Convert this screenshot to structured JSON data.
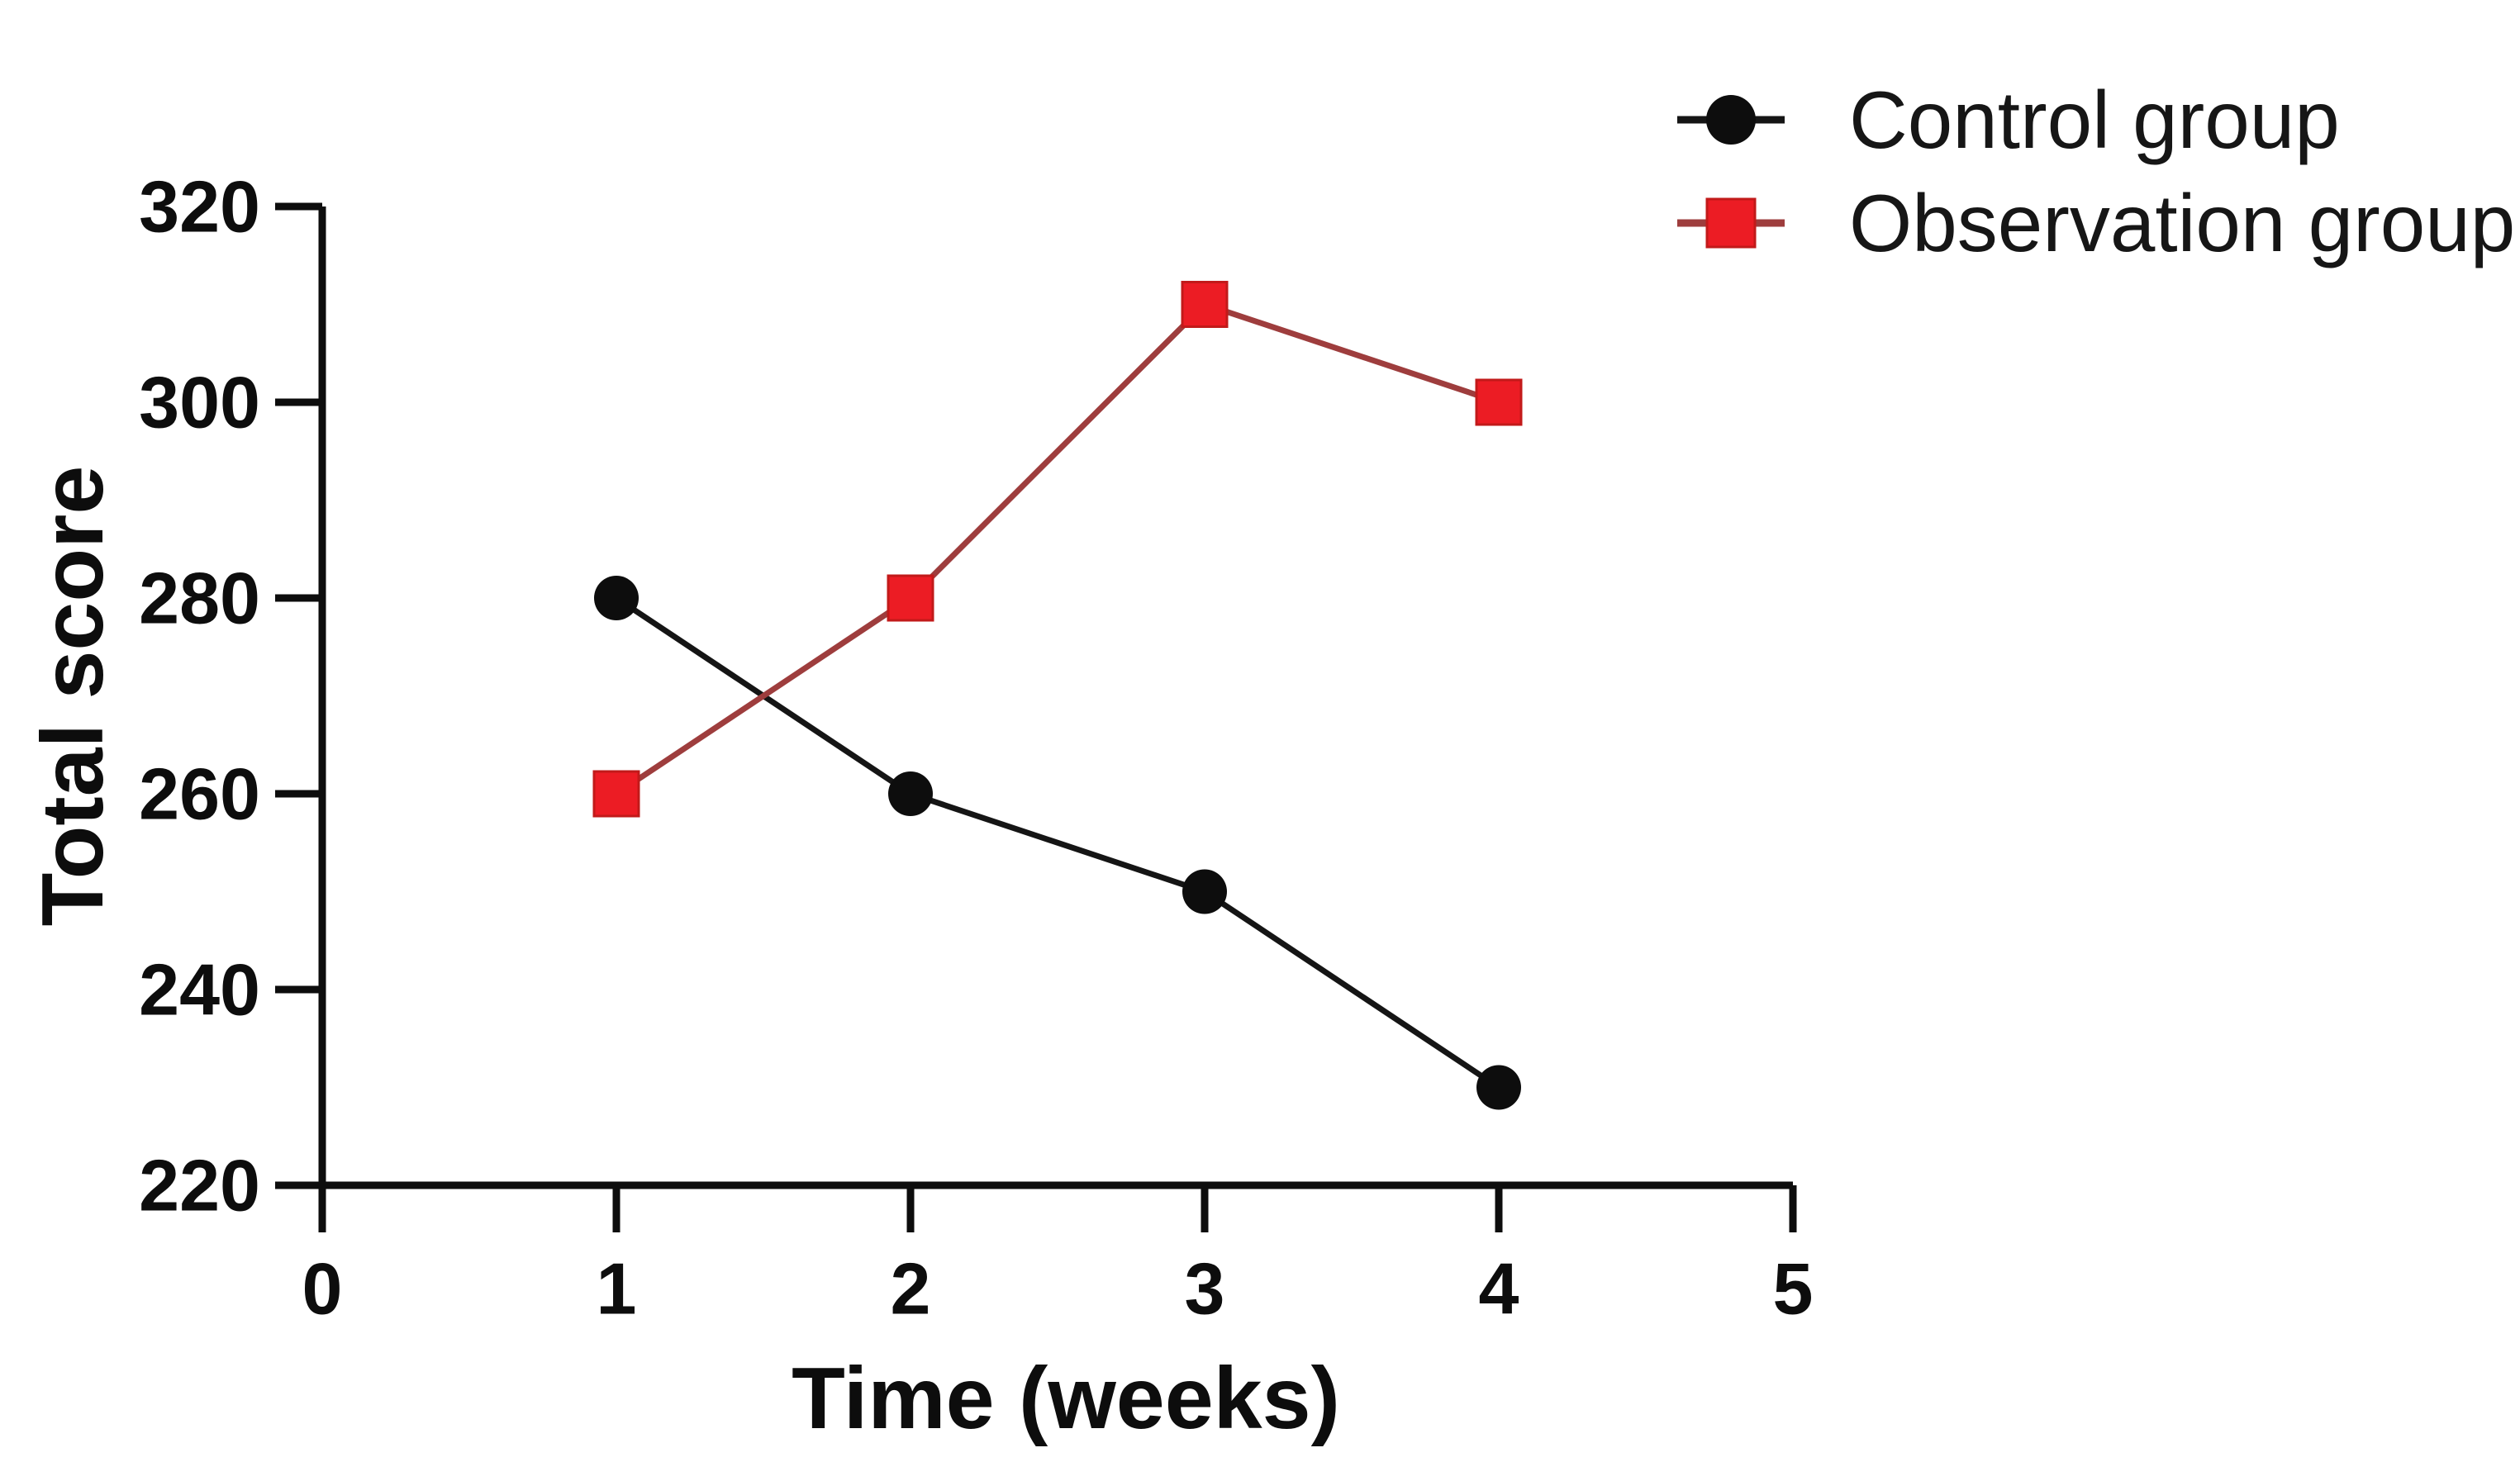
{
  "chart_data": {
    "type": "line",
    "title": "",
    "xlabel": "Time（weeks）",
    "ylabel": "Total score",
    "x": [
      1,
      2,
      3,
      4
    ],
    "series": [
      {
        "name": "Control group",
        "values": [
          280,
          260,
          250,
          230
        ],
        "marker": "circle",
        "marker_color": "#0d0d0d",
        "line_color": "#151515"
      },
      {
        "name": "Observation group",
        "values": [
          260,
          280,
          310,
          300
        ],
        "marker": "square",
        "marker_color": "#ec1c24",
        "marker_edge_color": "#c21a1a",
        "line_color": "#9e3d3d"
      }
    ],
    "x_axis": {
      "min": 0,
      "max": 5,
      "ticks": [
        0,
        1,
        2,
        3,
        4,
        5
      ]
    },
    "y_axis": {
      "min": 220,
      "max": 320,
      "ticks": [
        320,
        300,
        280,
        260,
        240,
        220
      ]
    },
    "legend": {
      "position": "top-right"
    },
    "grid": false,
    "axis_color": "#0d0d0d",
    "background_color": "#ffffff",
    "text_color": "#0d0d0d"
  }
}
